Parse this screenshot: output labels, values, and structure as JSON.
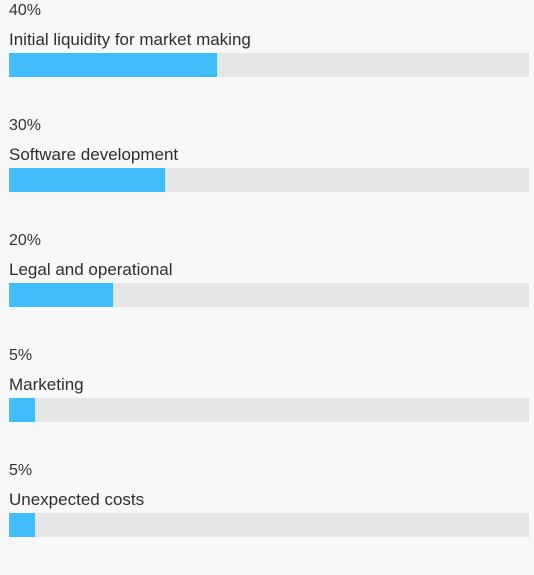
{
  "colors": {
    "bar_fill": "#40bdfd",
    "bar_track": "#e6e6e6",
    "background": "#f6f8fa"
  },
  "allocations": [
    {
      "percent_label": "40%",
      "label": "Initial liquidity for market making",
      "value": 40
    },
    {
      "percent_label": "30%",
      "label": "Software development",
      "value": 30
    },
    {
      "percent_label": "20%",
      "label": "Legal and operational",
      "value": 20
    },
    {
      "percent_label": "5%",
      "label": "Marketing",
      "value": 5
    },
    {
      "percent_label": "5%",
      "label": "Unexpected costs",
      "value": 5
    }
  ]
}
